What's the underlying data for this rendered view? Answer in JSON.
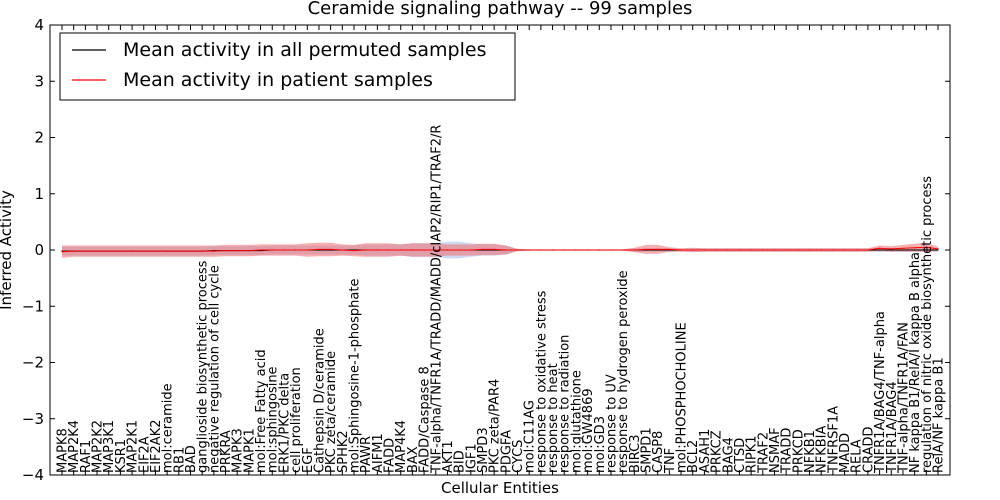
{
  "chart_data": {
    "type": "line",
    "title": "Ceramide signaling pathway -- 99 samples",
    "xlabel": "Cellular Entities",
    "ylabel": "Inferred Activity",
    "ylim": [
      -4,
      4
    ],
    "yticks": [
      4,
      3,
      2,
      1,
      0,
      -1,
      -2,
      -3,
      -4
    ],
    "ytick_labels": [
      "4",
      "3",
      "2",
      "1",
      "0",
      "−1",
      "−2",
      "−3",
      "−4"
    ],
    "legend_position": "top-left",
    "categories": [
      "MAPK8",
      "MAP2K4",
      "RAF1",
      "MAP2K2",
      "MAP3K1",
      "KSR1",
      "MAP2K1",
      "EIF2A",
      "EIF2AK2",
      "mol:ceramide",
      "RB1",
      "BAD",
      "ganglioside biosynthetic process",
      "negative regulation of cell cycle",
      "PRKRA",
      "MAPK3",
      "MAPK1",
      "mol:Free Fatty acid",
      "mol:sphingosine",
      "ERK1/PKC delta",
      "cell proliferation",
      "EGF",
      "Cathepsin D/ceramide",
      "PKC zeta/ceramide",
      "SPHK2",
      "mol:Sphingosine-1-phosphate",
      "PAWR",
      "AIFM1",
      "FADD",
      "MAP4K4",
      "BAX",
      "FADD/Caspase 8",
      "TNF-alpha/TNFR1A/TRADD/MADD/cIAP2/RIP1/TRAF2/R",
      "AKT1",
      "BID",
      "IGF1",
      "SMPD3",
      "PKC zeta/PAR4",
      "PDGFA",
      "CYCS",
      "mol:C11AG",
      "response to oxidative stress",
      "response to heat",
      "response to radiation",
      "mol:glutathione",
      "mol:GW4869",
      "mol:GD3",
      "response to UV",
      "response to hydrogen peroxide",
      "BIRC3",
      "SMPD1",
      "CASP8",
      "TNF",
      "mol:PHOSPHOCHOLINE",
      "BCL2",
      "ASAH1",
      "PRKCZ",
      "BAG4",
      "CTSD",
      "RIPK1",
      "TRAF2",
      "NSMAF",
      "TRADD",
      "PRKCD",
      "NFKB1",
      "NFKBIA",
      "TNFRSF1A",
      "MADD",
      "RELA",
      "CRADD",
      "TNFR1A/BAG4/TNF-alpha",
      "TNFR1A/BAG4",
      "TNF-alpha/TNFR1A/FAN",
      "NF kappa B1/RelA/I kappa B alpha",
      "regulation of nitric oxide biosynthetic process",
      "RelA/NF kappa B1"
    ],
    "series": [
      {
        "name": "Mean activity in all permuted samples",
        "color": "#000000",
        "values": [
          -0.02,
          -0.02,
          -0.02,
          -0.02,
          -0.02,
          -0.02,
          -0.02,
          -0.02,
          -0.02,
          -0.02,
          -0.02,
          -0.02,
          -0.02,
          -0.01,
          -0.01,
          -0.01,
          -0.01,
          -0.01,
          0,
          0,
          0,
          0,
          0,
          0,
          0,
          0,
          0,
          0,
          0,
          0,
          0,
          0,
          0,
          0,
          0,
          0,
          0,
          0,
          0,
          0,
          0,
          0,
          0,
          0,
          0,
          0,
          0,
          0,
          0,
          0,
          0,
          0,
          0,
          0,
          0,
          0,
          0,
          0,
          0,
          0,
          0,
          0,
          0,
          0,
          0,
          0,
          0,
          0,
          0,
          0,
          0,
          0,
          0,
          0,
          0,
          0
        ],
        "band": [
          0.08,
          0.08,
          0.08,
          0.08,
          0.08,
          0.08,
          0.08,
          0.08,
          0.08,
          0.08,
          0.08,
          0.08,
          0.08,
          0.08,
          0.08,
          0.08,
          0.08,
          0.08,
          0.08,
          0.08,
          0.08,
          0.08,
          0.08,
          0.08,
          0.08,
          0.08,
          0.1,
          0.1,
          0.1,
          0.1,
          0.12,
          0.12,
          0.12,
          0.15,
          0.15,
          0.12,
          0.1,
          0.1,
          0.08,
          0.02,
          0.01,
          0.01,
          0.01,
          0.01,
          0.01,
          0.01,
          0.01,
          0.01,
          0.01,
          0.03,
          0.03,
          0.03,
          0.03,
          0.02,
          0.03,
          0.03,
          0.03,
          0.03,
          0.03,
          0.03,
          0.03,
          0.03,
          0.03,
          0.03,
          0.03,
          0.03,
          0.03,
          0.03,
          0.03,
          0.03,
          0.03,
          0.03,
          0.03,
          0.03,
          0.03,
          0.03
        ]
      },
      {
        "name": "Mean activity in patient samples",
        "color": "#ff0000",
        "values": [
          -0.03,
          -0.02,
          -0.02,
          -0.02,
          -0.02,
          -0.02,
          -0.02,
          -0.02,
          -0.02,
          -0.02,
          -0.02,
          -0.02,
          -0.02,
          -0.02,
          -0.01,
          -0.01,
          -0.01,
          0,
          0,
          0,
          0,
          0,
          0.01,
          0.01,
          0,
          -0.01,
          0,
          0,
          0,
          0,
          0,
          0,
          0,
          0,
          0,
          0,
          0.01,
          0.01,
          0,
          0,
          0,
          0,
          0,
          0,
          0,
          0,
          0,
          0,
          0,
          0,
          0.01,
          0.01,
          0.01,
          0,
          0,
          0,
          0,
          0,
          0,
          0,
          0,
          0,
          0,
          0,
          0,
          0,
          0,
          0,
          0,
          0,
          0.03,
          0.02,
          0.03,
          0.04,
          0.05,
          0.02
        ],
        "band": [
          0.11,
          0.1,
          0.1,
          0.1,
          0.1,
          0.1,
          0.1,
          0.1,
          0.1,
          0.1,
          0.1,
          0.1,
          0.1,
          0.1,
          0.1,
          0.1,
          0.1,
          0.1,
          0.1,
          0.1,
          0.1,
          0.12,
          0.12,
          0.12,
          0.1,
          0.1,
          0.12,
          0.12,
          0.12,
          0.1,
          0.12,
          0.12,
          0.12,
          0.1,
          0.1,
          0.1,
          0.1,
          0.1,
          0.08,
          0.02,
          0.01,
          0.01,
          0.01,
          0.01,
          0.01,
          0.01,
          0.01,
          0.01,
          0.01,
          0.04,
          0.08,
          0.08,
          0.04,
          0.03,
          0.04,
          0.03,
          0.03,
          0.03,
          0.03,
          0.03,
          0.03,
          0.03,
          0.03,
          0.03,
          0.03,
          0.03,
          0.03,
          0.03,
          0.03,
          0.03,
          0.05,
          0.05,
          0.06,
          0.07,
          0.08,
          0.04
        ]
      }
    ]
  }
}
